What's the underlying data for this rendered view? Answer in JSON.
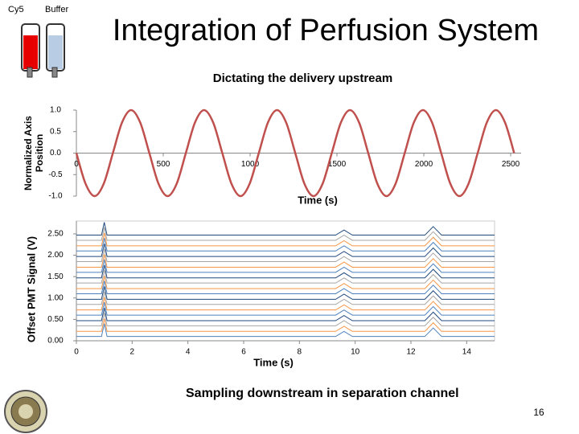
{
  "slide": {
    "title": "Integration of Perfusion System",
    "vial_labels": [
      "Cy5",
      "Buffer"
    ],
    "caption": "Sampling downstream in separation channel",
    "page_number": "16"
  },
  "chart_data": [
    {
      "type": "line",
      "title": "Dictating the delivery upstream",
      "y_label": [
        "Normalized Axis",
        "Position"
      ],
      "x_label": "Time (s)",
      "x": [
        0,
        52.5,
        105,
        157.5,
        210,
        262.5,
        315,
        367.5,
        420,
        472.5,
        525,
        577.5,
        630,
        682.5,
        735,
        787.5,
        840,
        892.5,
        945,
        997.5,
        1050,
        1102.5,
        1155,
        1207.5,
        1260,
        1312.5,
        1365,
        1417.5,
        1470,
        1522.5,
        1575,
        1627.5,
        1680,
        1732.5,
        1785,
        1837.5,
        1890,
        1942.5,
        1995,
        2047.5,
        2100,
        2152.5,
        2205,
        2257.5,
        2310,
        2362.5,
        2415,
        2467.5,
        2520
      ],
      "series": [
        {
          "color": "#c0504d",
          "values": [
            0,
            -0.71,
            -1,
            -0.71,
            0,
            0.71,
            1,
            0.71,
            0,
            -0.71,
            -1,
            -0.71,
            0,
            0.71,
            1,
            0.71,
            0,
            -0.71,
            -1,
            -0.71,
            0,
            0.71,
            1,
            0.71,
            0,
            -0.71,
            -1,
            -0.71,
            0,
            0.71,
            1,
            0.71,
            0,
            -0.71,
            -1,
            -0.71,
            0,
            0.71,
            1,
            0.71,
            0,
            -0.71,
            -1,
            -0.71,
            0,
            0.71,
            1,
            0.71,
            0
          ]
        }
      ],
      "xlim": [
        0,
        2560
      ],
      "xticks": [
        0,
        500,
        1000,
        1500,
        2000,
        2500
      ],
      "ylim": [
        -1,
        1
      ],
      "yticks": [
        {
          "value": 1,
          "label": "1.0"
        },
        0.5,
        {
          "value": 0,
          "label": "0.0"
        },
        -0.5,
        {
          "value": -1,
          "label": "-1.0"
        }
      ]
    },
    {
      "type": "line",
      "y_label": "Offset PMT Signal (V)",
      "x_label": "Time (s)",
      "x": [
        0,
        0.9,
        1.0,
        1.1,
        9.3,
        9.6,
        9.9,
        12.5,
        12.8,
        13.1,
        15
      ],
      "series": [
        {
          "color": "#4f81bd",
          "values": [
            0.1,
            0.1,
            0.4,
            0.1,
            0.1,
            0.22,
            0.1,
            0.1,
            0.3,
            0.1,
            0.1
          ]
        },
        {
          "color": "#f79646",
          "values": [
            0.22,
            0.22,
            0.52,
            0.22,
            0.22,
            0.34,
            0.22,
            0.22,
            0.42,
            0.22,
            0.22
          ]
        },
        {
          "color": "#a5a5a5",
          "values": [
            0.35,
            0.35,
            0.65,
            0.35,
            0.35,
            0.47,
            0.35,
            0.35,
            0.55,
            0.35,
            0.35
          ]
        },
        {
          "color": "#1f497d",
          "values": [
            0.47,
            0.47,
            0.77,
            0.47,
            0.47,
            0.59,
            0.47,
            0.47,
            0.67,
            0.47,
            0.47
          ]
        },
        {
          "color": "#4f81bd",
          "values": [
            0.6,
            0.6,
            0.9,
            0.6,
            0.6,
            0.72,
            0.6,
            0.6,
            0.8,
            0.6,
            0.6
          ]
        },
        {
          "color": "#f79646",
          "values": [
            0.72,
            0.72,
            1.02,
            0.72,
            0.72,
            0.84,
            0.72,
            0.72,
            0.92,
            0.72,
            0.72
          ]
        },
        {
          "color": "#a5a5a5",
          "values": [
            0.85,
            0.85,
            1.15,
            0.85,
            0.85,
            0.97,
            0.85,
            0.85,
            1.05,
            0.85,
            0.85
          ]
        },
        {
          "color": "#1f497d",
          "values": [
            0.97,
            0.97,
            1.27,
            0.97,
            0.97,
            1.09,
            0.97,
            0.97,
            1.17,
            0.97,
            0.97
          ]
        },
        {
          "color": "#4f81bd",
          "values": [
            1.1,
            1.1,
            1.4,
            1.1,
            1.1,
            1.22,
            1.1,
            1.1,
            1.3,
            1.1,
            1.1
          ]
        },
        {
          "color": "#f79646",
          "values": [
            1.22,
            1.22,
            1.52,
            1.22,
            1.22,
            1.34,
            1.22,
            1.22,
            1.42,
            1.22,
            1.22
          ]
        },
        {
          "color": "#a5a5a5",
          "values": [
            1.35,
            1.35,
            1.65,
            1.35,
            1.35,
            1.47,
            1.35,
            1.35,
            1.55,
            1.35,
            1.35
          ]
        },
        {
          "color": "#1f497d",
          "values": [
            1.47,
            1.47,
            1.77,
            1.47,
            1.47,
            1.59,
            1.47,
            1.47,
            1.67,
            1.47,
            1.47
          ]
        },
        {
          "color": "#4f81bd",
          "values": [
            1.6,
            1.6,
            1.9,
            1.6,
            1.6,
            1.72,
            1.6,
            1.6,
            1.8,
            1.6,
            1.6
          ]
        },
        {
          "color": "#f79646",
          "values": [
            1.72,
            1.72,
            2.02,
            1.72,
            1.72,
            1.84,
            1.72,
            1.72,
            1.92,
            1.72,
            1.72
          ]
        },
        {
          "color": "#a5a5a5",
          "values": [
            1.85,
            1.85,
            2.15,
            1.85,
            1.85,
            1.97,
            1.85,
            1.85,
            2.05,
            1.85,
            1.85
          ]
        },
        {
          "color": "#1f497d",
          "values": [
            1.97,
            1.97,
            2.27,
            1.97,
            1.97,
            2.09,
            1.97,
            1.97,
            2.17,
            1.97,
            1.97
          ]
        },
        {
          "color": "#4f81bd",
          "values": [
            2.1,
            2.1,
            2.4,
            2.1,
            2.1,
            2.22,
            2.1,
            2.1,
            2.3,
            2.1,
            2.1
          ]
        },
        {
          "color": "#f79646",
          "values": [
            2.22,
            2.22,
            2.52,
            2.22,
            2.22,
            2.34,
            2.22,
            2.22,
            2.42,
            2.22,
            2.22
          ]
        },
        {
          "color": "#a5a5a5",
          "values": [
            2.35,
            2.35,
            2.65,
            2.35,
            2.35,
            2.47,
            2.35,
            2.35,
            2.55,
            2.35,
            2.35
          ]
        },
        {
          "color": "#1f497d",
          "values": [
            2.47,
            2.47,
            2.77,
            2.47,
            2.47,
            2.59,
            2.47,
            2.47,
            2.67,
            2.47,
            2.47
          ]
        }
      ],
      "xlim": [
        0,
        15
      ],
      "xticks": [
        0,
        2,
        4,
        6,
        8,
        10,
        12,
        14
      ],
      "ylim": [
        0,
        2.8
      ],
      "yticks": [
        {
          "value": 0,
          "label": "0.00"
        },
        {
          "value": 0.5,
          "label": "0.50"
        },
        {
          "value": 1,
          "label": "1.00"
        },
        {
          "value": 1.5,
          "label": "1.50"
        },
        {
          "value": 2,
          "label": "2.00"
        },
        {
          "value": 2.5,
          "label": "2.50"
        }
      ]
    }
  ]
}
